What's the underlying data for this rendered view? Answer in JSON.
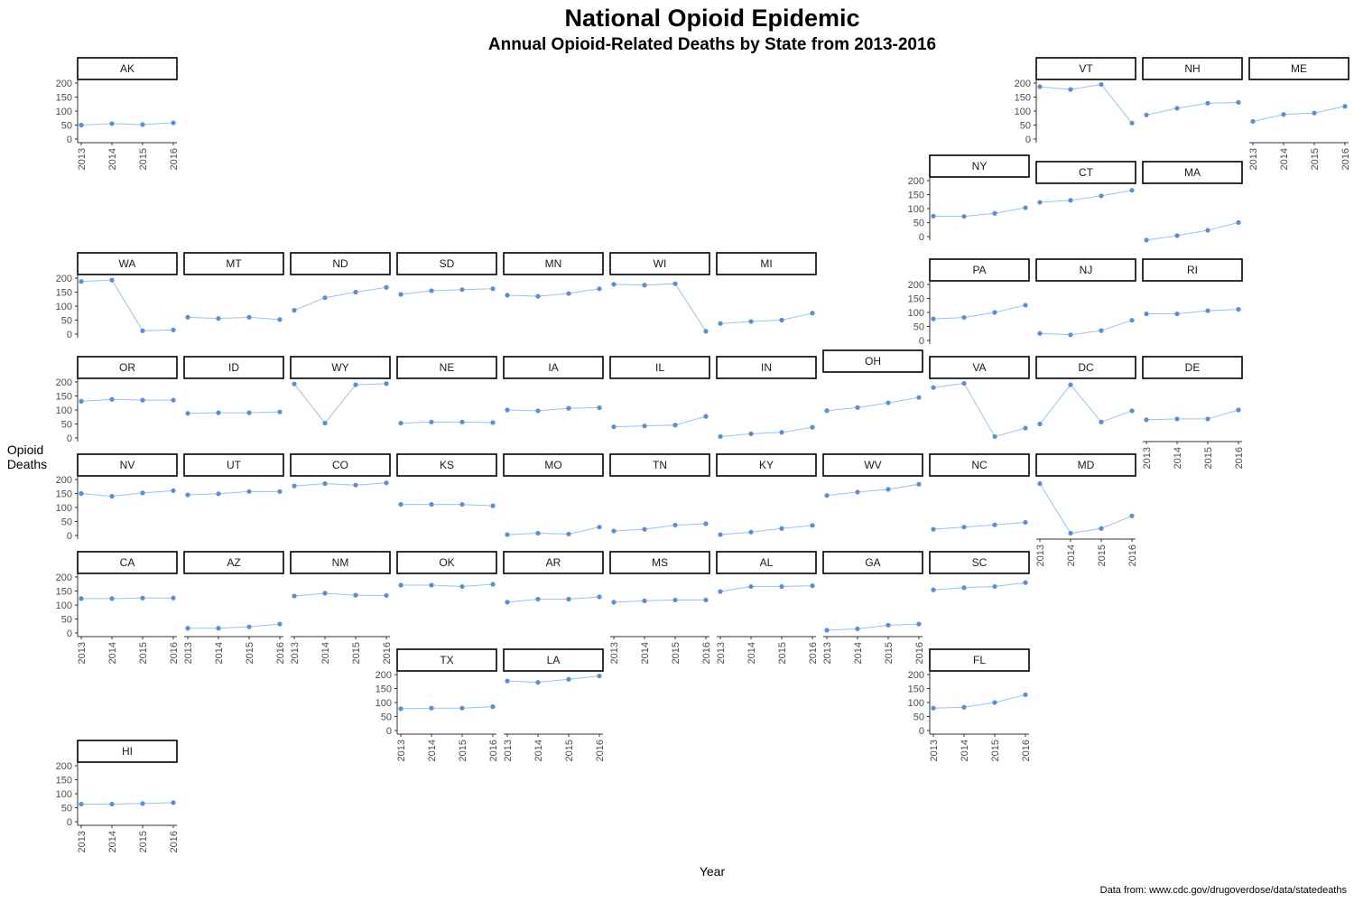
{
  "chart_data": {
    "type": "line",
    "title": "National Opioid Epidemic",
    "subtitle": "Annual Opioid-Related Deaths by State from 2013-2016",
    "xlabel": "Year",
    "ylabel": "Opioid Deaths",
    "caption": "Data from: www.cdc.gov/drugoverdose/data/statedeaths",
    "x": [
      "2013",
      "2014",
      "2015",
      "2016"
    ],
    "y_ticks": [
      "0",
      "50",
      "100",
      "150",
      "200"
    ],
    "ylim": [
      0,
      200
    ],
    "grid": false,
    "point_color": "#5b8fd0",
    "line_color": "#9cc3e6",
    "series": [
      {
        "name": "AK",
        "values": [
          50,
          55,
          52,
          58
        ]
      },
      {
        "name": "VT",
        "values": [
          187,
          177,
          195,
          57
        ]
      },
      {
        "name": "NH",
        "values": [
          86,
          110,
          128,
          131
        ]
      },
      {
        "name": "ME",
        "values": [
          63,
          88,
          93,
          117
        ]
      },
      {
        "name": "NY",
        "values": [
          73,
          72,
          83,
          103
        ]
      },
      {
        "name": "CT",
        "values": [
          145,
          152,
          168,
          188
        ]
      },
      {
        "name": "MA",
        "values": [
          10,
          26,
          45,
          73
        ]
      },
      {
        "name": "WA",
        "values": [
          188,
          193,
          12,
          15
        ]
      },
      {
        "name": "MT",
        "values": [
          60,
          56,
          60,
          52
        ]
      },
      {
        "name": "ND",
        "values": [
          85,
          130,
          150,
          167
        ]
      },
      {
        "name": "SD",
        "values": [
          142,
          155,
          159,
          162
        ]
      },
      {
        "name": "MN",
        "values": [
          139,
          135,
          145,
          162
        ]
      },
      {
        "name": "WI",
        "values": [
          178,
          175,
          180,
          10
        ]
      },
      {
        "name": "MI",
        "values": [
          38,
          45,
          50,
          75
        ]
      },
      {
        "name": "PA",
        "values": [
          77,
          82,
          100,
          126
        ]
      },
      {
        "name": "NJ",
        "values": [
          25,
          20,
          35,
          72
        ]
      },
      {
        "name": "RI",
        "values": [
          95,
          95,
          106,
          111
        ]
      },
      {
        "name": "OR",
        "values": [
          131,
          138,
          135,
          135
        ]
      },
      {
        "name": "ID",
        "values": [
          88,
          90,
          90,
          93
        ]
      },
      {
        "name": "WY",
        "values": [
          193,
          53,
          190,
          194
        ]
      },
      {
        "name": "NE",
        "values": [
          53,
          57,
          57,
          55
        ]
      },
      {
        "name": "IA",
        "values": [
          100,
          97,
          106,
          108
        ]
      },
      {
        "name": "IL",
        "values": [
          40,
          43,
          46,
          77
        ]
      },
      {
        "name": "IN",
        "values": [
          5,
          15,
          20,
          38
        ]
      },
      {
        "name": "OH",
        "values": [
          75,
          86,
          103,
          122
        ]
      },
      {
        "name": "VA",
        "values": [
          180,
          195,
          5,
          35
        ]
      },
      {
        "name": "DC",
        "values": [
          50,
          190,
          57,
          97
        ]
      },
      {
        "name": "DE",
        "values": [
          65,
          68,
          68,
          100
        ]
      },
      {
        "name": "NV",
        "values": [
          150,
          140,
          152,
          160
        ]
      },
      {
        "name": "UT",
        "values": [
          145,
          149,
          157,
          157
        ]
      },
      {
        "name": "CO",
        "values": [
          177,
          185,
          180,
          188
        ]
      },
      {
        "name": "KS",
        "values": [
          111,
          111,
          111,
          106
        ]
      },
      {
        "name": "MO",
        "values": [
          3,
          8,
          5,
          30
        ]
      },
      {
        "name": "TN",
        "values": [
          16,
          22,
          37,
          42
        ]
      },
      {
        "name": "KY",
        "values": [
          3,
          12,
          25,
          36
        ]
      },
      {
        "name": "WV",
        "values": [
          143,
          155,
          165,
          183
        ]
      },
      {
        "name": "NC",
        "values": [
          22,
          30,
          38,
          47
        ]
      },
      {
        "name": "MD",
        "values": [
          185,
          8,
          25,
          70
        ]
      },
      {
        "name": "CA",
        "values": [
          123,
          123,
          125,
          125
        ]
      },
      {
        "name": "AZ",
        "values": [
          17,
          17,
          22,
          32
        ]
      },
      {
        "name": "NM",
        "values": [
          132,
          142,
          135,
          134
        ]
      },
      {
        "name": "OK",
        "values": [
          171,
          171,
          166,
          174
        ]
      },
      {
        "name": "AR",
        "values": [
          110,
          121,
          121,
          129
        ]
      },
      {
        "name": "MS",
        "values": [
          110,
          115,
          118,
          118
        ]
      },
      {
        "name": "AL",
        "values": [
          148,
          166,
          166,
          169
        ]
      },
      {
        "name": "GA",
        "values": [
          10,
          15,
          28,
          32
        ]
      },
      {
        "name": "SC",
        "values": [
          154,
          162,
          166,
          180
        ]
      },
      {
        "name": "TX",
        "values": [
          78,
          80,
          80,
          85
        ]
      },
      {
        "name": "LA",
        "values": [
          177,
          172,
          183,
          195
        ]
      },
      {
        "name": "FL",
        "values": [
          80,
          83,
          100,
          128
        ]
      },
      {
        "name": "HI",
        "values": [
          63,
          63,
          65,
          68
        ]
      }
    ]
  }
}
